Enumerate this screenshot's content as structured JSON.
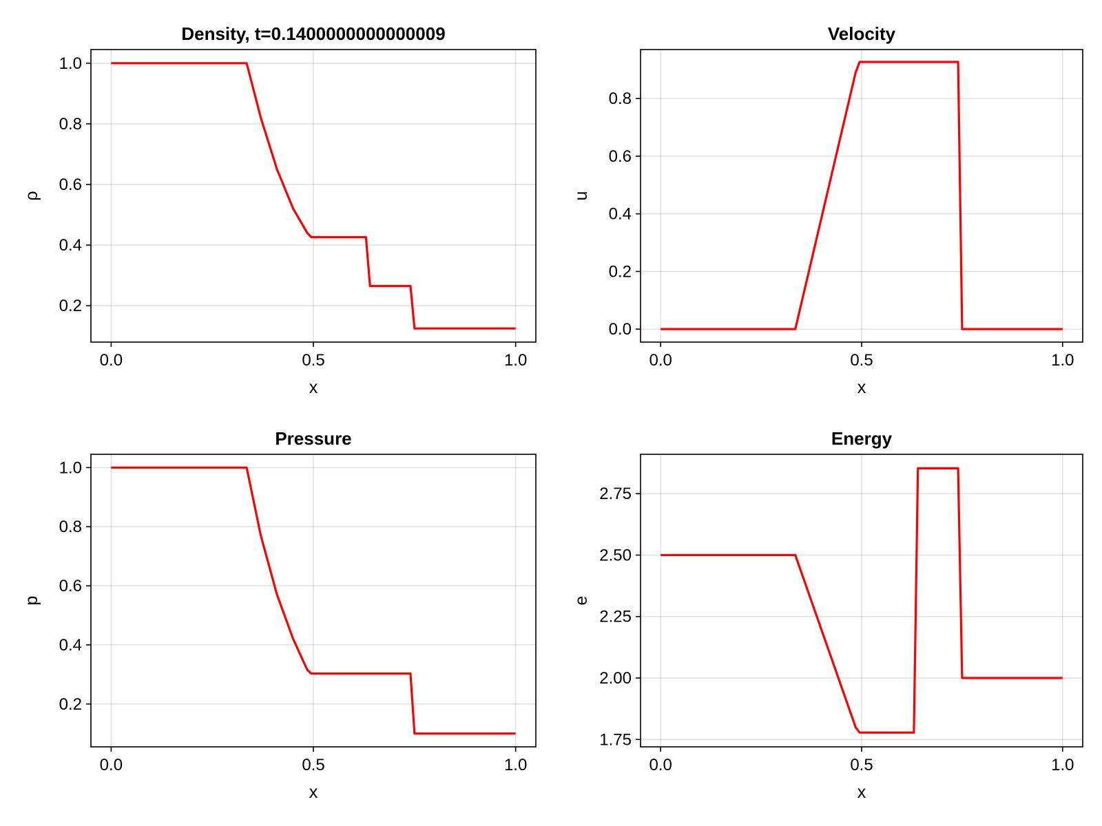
{
  "line_color": "#ff0000",
  "chart_data": [
    {
      "type": "line",
      "title": "Density, t=0.1400000000000009",
      "xlabel": "x",
      "ylabel": "ρ",
      "xlim": [
        -0.05,
        1.05
      ],
      "ylim": [
        0.08,
        1.045
      ],
      "xticks": [
        0.0,
        0.5,
        1.0
      ],
      "xtick_labels": [
        "0.0",
        "0.5",
        "1.0"
      ],
      "yticks": [
        0.2,
        0.4,
        0.6,
        0.8,
        1.0
      ],
      "ytick_labels": [
        "0.2",
        "0.4",
        "0.6",
        "0.8",
        "1.0"
      ],
      "grid": true,
      "series": [
        {
          "x": [
            0.0,
            0.335,
            0.37,
            0.41,
            0.45,
            0.485,
            0.495,
            0.63,
            0.64,
            0.74,
            0.75,
            1.0
          ],
          "y": [
            1.0,
            1.0,
            0.82,
            0.65,
            0.52,
            0.44,
            0.426,
            0.426,
            0.265,
            0.265,
            0.125,
            0.125
          ]
        }
      ]
    },
    {
      "type": "line",
      "title": "Velocity",
      "xlabel": "x",
      "ylabel": "u",
      "xlim": [
        -0.05,
        1.05
      ],
      "ylim": [
        -0.045,
        0.97
      ],
      "xticks": [
        0.0,
        0.5,
        1.0
      ],
      "xtick_labels": [
        "0.0",
        "0.5",
        "1.0"
      ],
      "yticks": [
        0.0,
        0.2,
        0.4,
        0.6,
        0.8
      ],
      "ytick_labels": [
        "0.0",
        "0.2",
        "0.4",
        "0.6",
        "0.8"
      ],
      "grid": true,
      "series": [
        {
          "x": [
            0.0,
            0.335,
            0.485,
            0.495,
            0.74,
            0.75,
            1.0
          ],
          "y": [
            0.0,
            0.0,
            0.89,
            0.927,
            0.927,
            0.0,
            0.0
          ]
        }
      ]
    },
    {
      "type": "line",
      "title": "Pressure",
      "xlabel": "x",
      "ylabel": "p",
      "xlim": [
        -0.05,
        1.05
      ],
      "ylim": [
        0.055,
        1.045
      ],
      "xticks": [
        0.0,
        0.5,
        1.0
      ],
      "xtick_labels": [
        "0.0",
        "0.5",
        "1.0"
      ],
      "yticks": [
        0.2,
        0.4,
        0.6,
        0.8,
        1.0
      ],
      "ytick_labels": [
        "0.2",
        "0.4",
        "0.6",
        "0.8",
        "1.0"
      ],
      "grid": true,
      "series": [
        {
          "x": [
            0.0,
            0.335,
            0.37,
            0.41,
            0.45,
            0.485,
            0.495,
            0.74,
            0.75,
            1.0
          ],
          "y": [
            1.0,
            1.0,
            0.77,
            0.57,
            0.42,
            0.315,
            0.303,
            0.303,
            0.1,
            0.1
          ]
        }
      ]
    },
    {
      "type": "line",
      "title": "Energy",
      "xlabel": "x",
      "ylabel": "e",
      "xlim": [
        -0.05,
        1.05
      ],
      "ylim": [
        1.72,
        2.91
      ],
      "xticks": [
        0.0,
        0.5,
        1.0
      ],
      "xtick_labels": [
        "0.0",
        "0.5",
        "1.0"
      ],
      "yticks": [
        1.75,
        2.0,
        2.25,
        2.5,
        2.75
      ],
      "ytick_labels": [
        "1.75",
        "2.00",
        "2.25",
        "2.50",
        "2.75"
      ],
      "grid": true,
      "series": [
        {
          "x": [
            0.0,
            0.335,
            0.485,
            0.495,
            0.63,
            0.64,
            0.74,
            0.75,
            1.0
          ],
          "y": [
            2.5,
            2.5,
            1.8,
            1.778,
            1.778,
            2.853,
            2.853,
            2.0,
            2.0
          ]
        }
      ]
    }
  ]
}
